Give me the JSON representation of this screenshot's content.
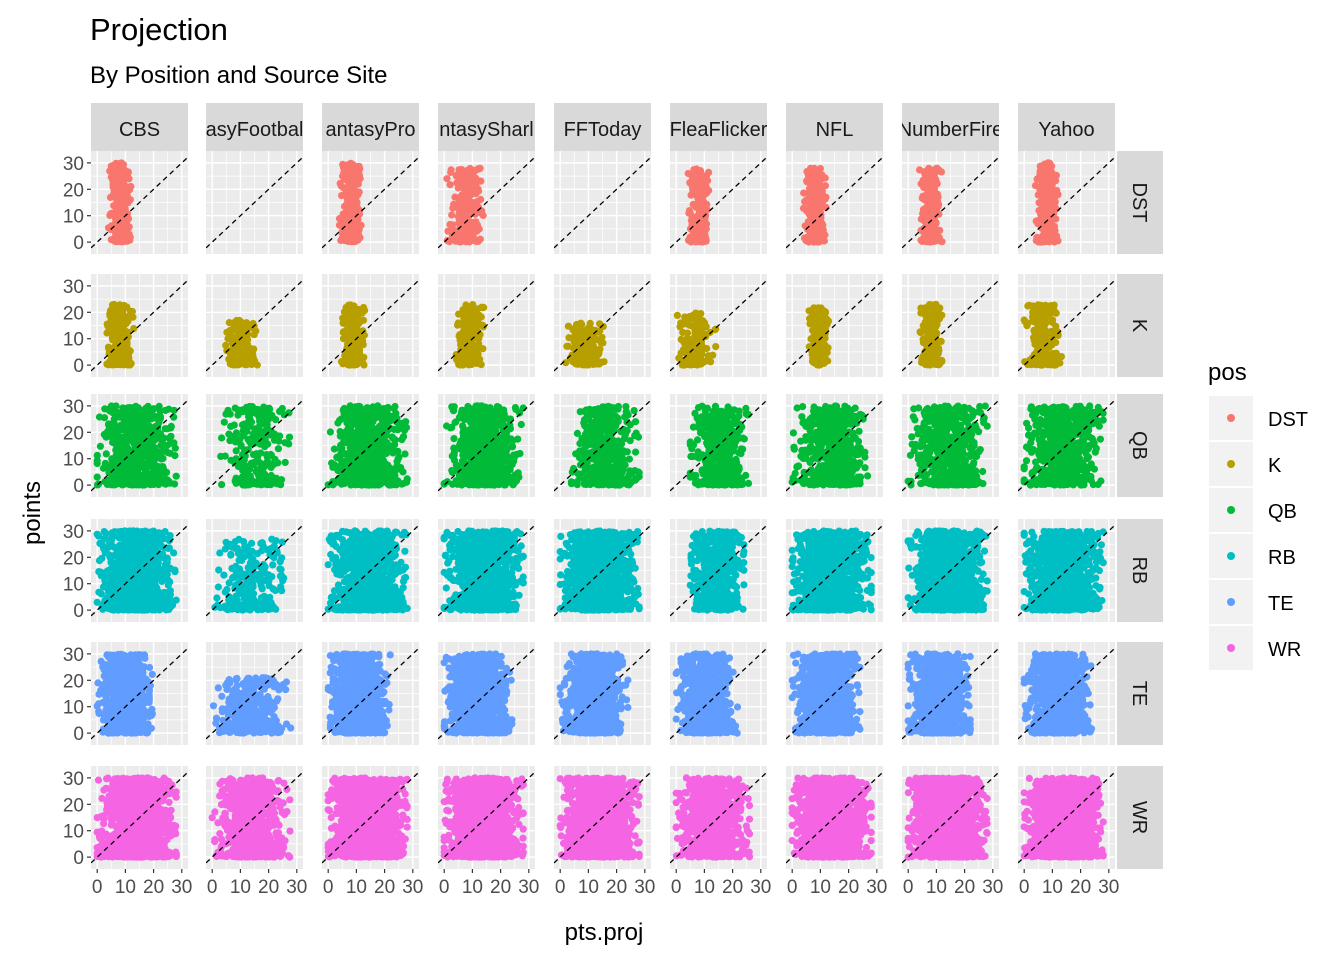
{
  "chart_data": {
    "type": "scatter",
    "title": "Projection",
    "subtitle": "By Position and Source Site",
    "xlabel": "pts.proj",
    "ylabel": "points",
    "xlim": [
      0,
      30
    ],
    "ylim": [
      0,
      30
    ],
    "x_ticks": [
      "0",
      "10",
      "20",
      "30"
    ],
    "y_ticks": [
      "0",
      "10",
      "20",
      "30"
    ],
    "reference_line": "y = x (dashed)",
    "columns": [
      "CBS",
      "FantasyFootballNerd",
      "FantasyPros",
      "FantasySharks",
      "FFToday",
      "FleaFlicker",
      "NFL",
      "NumberFire",
      "Yahoo"
    ],
    "column_labels_visible": [
      "CBS",
      "asyFootbal",
      "antasyPro",
      "ntasySharl",
      "FFToday",
      "FleaFlicker",
      "NFL",
      "NumberFire",
      "Yahoo"
    ],
    "rows": [
      "DST",
      "K",
      "QB",
      "RB",
      "TE",
      "WR"
    ],
    "legend": {
      "title": "pos",
      "placement": "right",
      "entries": [
        {
          "label": "DST",
          "color": "#F8766D"
        },
        {
          "label": "K",
          "color": "#B79F00"
        },
        {
          "label": "QB",
          "color": "#00BA38"
        },
        {
          "label": "RB",
          "color": "#00BFC4"
        },
        {
          "label": "TE",
          "color": "#619CFF"
        },
        {
          "label": "WR",
          "color": "#F564E3"
        }
      ]
    },
    "panels": {
      "DST": {
        "CBS": {
          "x": [
            4,
            12
          ],
          "y": [
            0,
            30
          ],
          "n": 260
        },
        "FantasyFootballNerd": {
          "x": [],
          "y": [],
          "n": 0
        },
        "FantasyPros": {
          "x": [
            4,
            12
          ],
          "y": [
            0,
            30
          ],
          "n": 260
        },
        "FantasySharks": {
          "x": [
            1,
            14
          ],
          "y": [
            0,
            28
          ],
          "n": 260
        },
        "FFToday": {
          "x": [],
          "y": [],
          "n": 0
        },
        "FleaFlicker": {
          "x": [
            4,
            12
          ],
          "y": [
            0,
            28
          ],
          "n": 240
        },
        "NFL": {
          "x": [
            4,
            12
          ],
          "y": [
            0,
            28
          ],
          "n": 240
        },
        "NumberFire": {
          "x": [
            4,
            12
          ],
          "y": [
            0,
            28
          ],
          "n": 240
        },
        "Yahoo": {
          "x": [
            4,
            12
          ],
          "y": [
            0,
            30
          ],
          "n": 260
        }
      },
      "K": {
        "CBS": {
          "x": [
            3,
            13
          ],
          "y": [
            0,
            23
          ],
          "n": 220
        },
        "FantasyFootballNerd": {
          "x": [
            4,
            16
          ],
          "y": [
            0,
            17
          ],
          "n": 200
        },
        "FantasyPros": {
          "x": [
            4,
            13
          ],
          "y": [
            0,
            23
          ],
          "n": 220
        },
        "FantasySharks": {
          "x": [
            4,
            14
          ],
          "y": [
            0,
            23
          ],
          "n": 220
        },
        "FFToday": {
          "x": [
            2,
            16
          ],
          "y": [
            0,
            16
          ],
          "n": 200
        },
        "FleaFlicker": {
          "x": [
            0,
            14
          ],
          "y": [
            0,
            20
          ],
          "n": 150
        },
        "NFL": {
          "x": [
            6,
            13
          ],
          "y": [
            0,
            22
          ],
          "n": 200
        },
        "NumberFire": {
          "x": [
            4,
            13
          ],
          "y": [
            0,
            23
          ],
          "n": 220
        },
        "Yahoo": {
          "x": [
            0,
            14
          ],
          "y": [
            0,
            23
          ],
          "n": 200
        }
      },
      "QB": {
        "CBS": {
          "x": [
            0,
            28
          ],
          "y": [
            0,
            30
          ],
          "n": 650
        },
        "FantasyFootballNerd": {
          "x": [
            3,
            28
          ],
          "y": [
            0,
            30
          ],
          "n": 260
        },
        "FantasyPros": {
          "x": [
            0,
            28
          ],
          "y": [
            0,
            30
          ],
          "n": 650
        },
        "FantasySharks": {
          "x": [
            0,
            28
          ],
          "y": [
            0,
            30
          ],
          "n": 650
        },
        "FFToday": {
          "x": [
            4,
            28
          ],
          "y": [
            0,
            30
          ],
          "n": 500
        },
        "FleaFlicker": {
          "x": [
            5,
            26
          ],
          "y": [
            0,
            30
          ],
          "n": 400
        },
        "NFL": {
          "x": [
            0,
            28
          ],
          "y": [
            0,
            30
          ],
          "n": 550
        },
        "NumberFire": {
          "x": [
            0,
            28
          ],
          "y": [
            0,
            30
          ],
          "n": 600
        },
        "Yahoo": {
          "x": [
            0,
            28
          ],
          "y": [
            0,
            30
          ],
          "n": 650
        }
      },
      "RB": {
        "CBS": {
          "x": [
            0,
            28
          ],
          "y": [
            0,
            30
          ],
          "n": 1100
        },
        "FantasyFootballNerd": {
          "x": [
            0,
            28
          ],
          "y": [
            0,
            27
          ],
          "n": 260
        },
        "FantasyPros": {
          "x": [
            0,
            28
          ],
          "y": [
            0,
            30
          ],
          "n": 1100
        },
        "FantasySharks": {
          "x": [
            0,
            28
          ],
          "y": [
            0,
            30
          ],
          "n": 1100
        },
        "FFToday": {
          "x": [
            0,
            28
          ],
          "y": [
            0,
            30
          ],
          "n": 1100
        },
        "FleaFlicker": {
          "x": [
            5,
            24
          ],
          "y": [
            0,
            30
          ],
          "n": 600
        },
        "NFL": {
          "x": [
            0,
            28
          ],
          "y": [
            0,
            30
          ],
          "n": 1100
        },
        "NumberFire": {
          "x": [
            0,
            28
          ],
          "y": [
            0,
            30
          ],
          "n": 1100
        },
        "Yahoo": {
          "x": [
            0,
            28
          ],
          "y": [
            0,
            30
          ],
          "n": 1100
        }
      },
      "TE": {
        "CBS": {
          "x": [
            0,
            20
          ],
          "y": [
            0,
            30
          ],
          "n": 900
        },
        "FantasyFootballNerd": {
          "x": [
            0,
            28
          ],
          "y": [
            0,
            21
          ],
          "n": 320
        },
        "FantasyPros": {
          "x": [
            0,
            22
          ],
          "y": [
            0,
            30
          ],
          "n": 1000
        },
        "FantasySharks": {
          "x": [
            0,
            24
          ],
          "y": [
            0,
            30
          ],
          "n": 1000
        },
        "FFToday": {
          "x": [
            0,
            24
          ],
          "y": [
            0,
            30
          ],
          "n": 900
        },
        "FleaFlicker": {
          "x": [
            0,
            22
          ],
          "y": [
            0,
            30
          ],
          "n": 700
        },
        "NFL": {
          "x": [
            0,
            24
          ],
          "y": [
            0,
            30
          ],
          "n": 1000
        },
        "NumberFire": {
          "x": [
            0,
            22
          ],
          "y": [
            0,
            30
          ],
          "n": 1000
        },
        "Yahoo": {
          "x": [
            0,
            24
          ],
          "y": [
            0,
            30
          ],
          "n": 1000
        }
      },
      "WR": {
        "CBS": {
          "x": [
            0,
            28
          ],
          "y": [
            0,
            30
          ],
          "n": 1400
        },
        "FantasyFootballNerd": {
          "x": [
            0,
            28
          ],
          "y": [
            0,
            30
          ],
          "n": 700
        },
        "FantasyPros": {
          "x": [
            0,
            28
          ],
          "y": [
            0,
            30
          ],
          "n": 1400
        },
        "FantasySharks": {
          "x": [
            0,
            28
          ],
          "y": [
            0,
            30
          ],
          "n": 1400
        },
        "FFToday": {
          "x": [
            0,
            28
          ],
          "y": [
            0,
            30
          ],
          "n": 1400
        },
        "FleaFlicker": {
          "x": [
            0,
            26
          ],
          "y": [
            0,
            30
          ],
          "n": 700
        },
        "NFL": {
          "x": [
            0,
            28
          ],
          "y": [
            0,
            30
          ],
          "n": 1400
        },
        "NumberFire": {
          "x": [
            0,
            28
          ],
          "y": [
            0,
            30
          ],
          "n": 1400
        },
        "Yahoo": {
          "x": [
            0,
            28
          ],
          "y": [
            0,
            30
          ],
          "n": 1400
        }
      }
    }
  }
}
